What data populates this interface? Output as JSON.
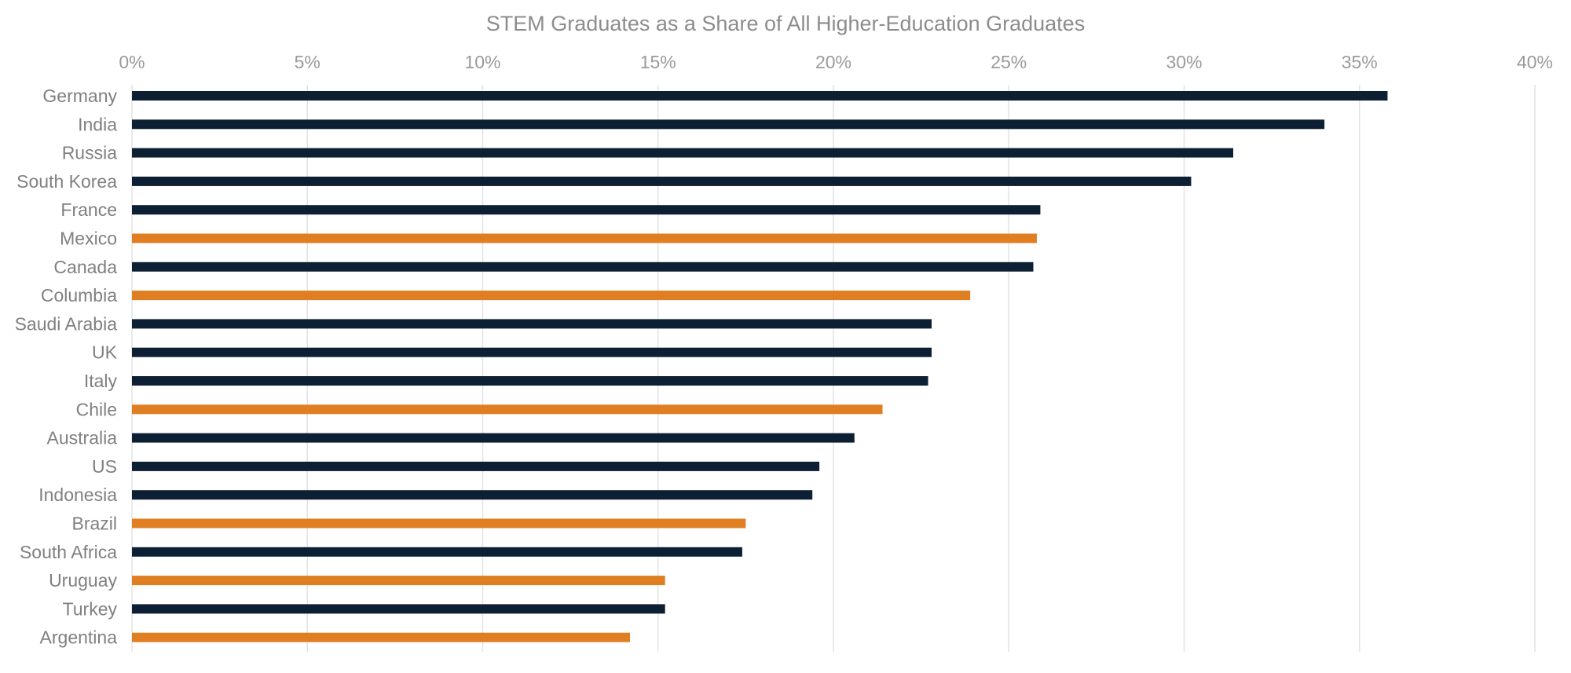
{
  "chart_data": {
    "type": "bar",
    "orientation": "horizontal",
    "title": "STEM Graduates as a Share of All Higher-Education Graduates",
    "xlabel": "",
    "ylabel": "",
    "xlim": [
      0,
      40
    ],
    "x_ticks": [
      0,
      5,
      10,
      15,
      20,
      25,
      30,
      35,
      40
    ],
    "x_tick_labels": [
      "0%",
      "5%",
      "10%",
      "15%",
      "20%",
      "25%",
      "30%",
      "35%",
      "40%"
    ],
    "tick_position": "top",
    "grid": true,
    "legend": "none",
    "colors": {
      "default": "#0d1f33",
      "highlight": "#e07e22"
    },
    "categories": [
      "Germany",
      "India",
      "Russia",
      "South Korea",
      "France",
      "Mexico",
      "Canada",
      "Columbia",
      "Saudi Arabia",
      "UK",
      "Italy",
      "Chile",
      "Australia",
      "US",
      "Indonesia",
      "Brazil",
      "South Africa",
      "Uruguay",
      "Turkey",
      "Argentina"
    ],
    "values": [
      35.8,
      34.0,
      31.4,
      30.2,
      25.9,
      25.8,
      25.7,
      23.9,
      22.8,
      22.8,
      22.7,
      21.4,
      20.6,
      19.6,
      19.4,
      17.5,
      17.4,
      15.2,
      15.2,
      14.2
    ],
    "highlighted": [
      false,
      false,
      false,
      false,
      false,
      true,
      false,
      true,
      false,
      false,
      false,
      true,
      false,
      false,
      false,
      true,
      false,
      true,
      false,
      true
    ]
  }
}
